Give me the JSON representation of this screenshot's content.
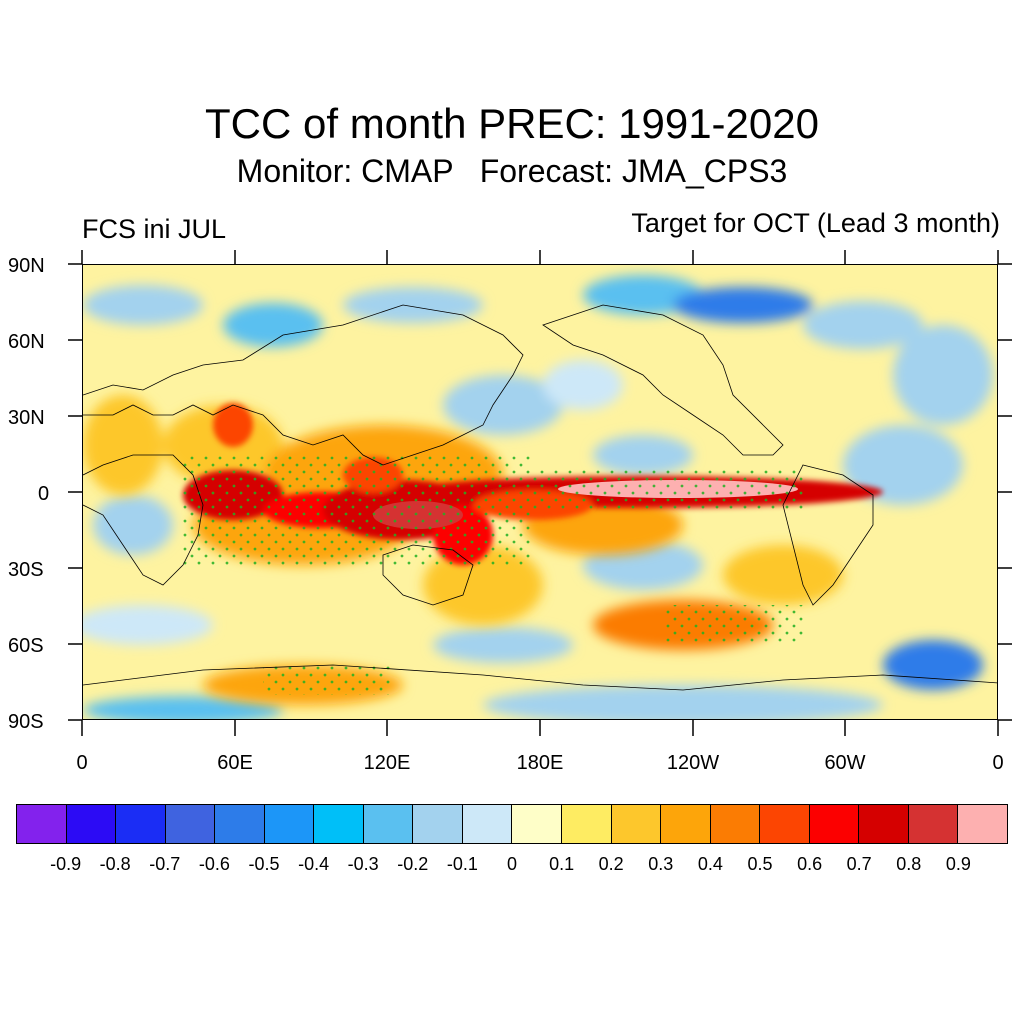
{
  "title": "TCC of month PREC: 1991-2020",
  "subtitle": "Monitor: CMAP   Forecast: JMA_CPS3",
  "left_label": "FCS ini JUL",
  "right_label": "Target for OCT (Lead 3 month)",
  "lat_labels": [
    "90N",
    "60N",
    "30N",
    "0",
    "30S",
    "60S",
    "90S"
  ],
  "lon_labels": [
    "0",
    "60E",
    "120E",
    "180E",
    "120W",
    "60W",
    "0"
  ],
  "colorbar": {
    "colors": [
      "#8322ed",
      "#2c0bf5",
      "#1b2df5",
      "#3f63e0",
      "#2d7ce9",
      "#1c96f8",
      "#00bff8",
      "#5ac0f0",
      "#a3d2ee",
      "#cde8f8",
      "#fefec8",
      "#feec62",
      "#fdc72c",
      "#fda50a",
      "#fb7c03",
      "#fc4502",
      "#fc0000",
      "#d50000",
      "#d53232",
      "#fdb0b0"
    ],
    "labels": [
      "-0.9",
      "-0.8",
      "-0.7",
      "-0.6",
      "-0.5",
      "-0.4",
      "-0.3",
      "-0.2",
      "-0.1",
      "0",
      "0.1",
      "0.2",
      "0.3",
      "0.4",
      "0.5",
      "0.6",
      "0.7",
      "0.8",
      "0.9"
    ]
  }
}
